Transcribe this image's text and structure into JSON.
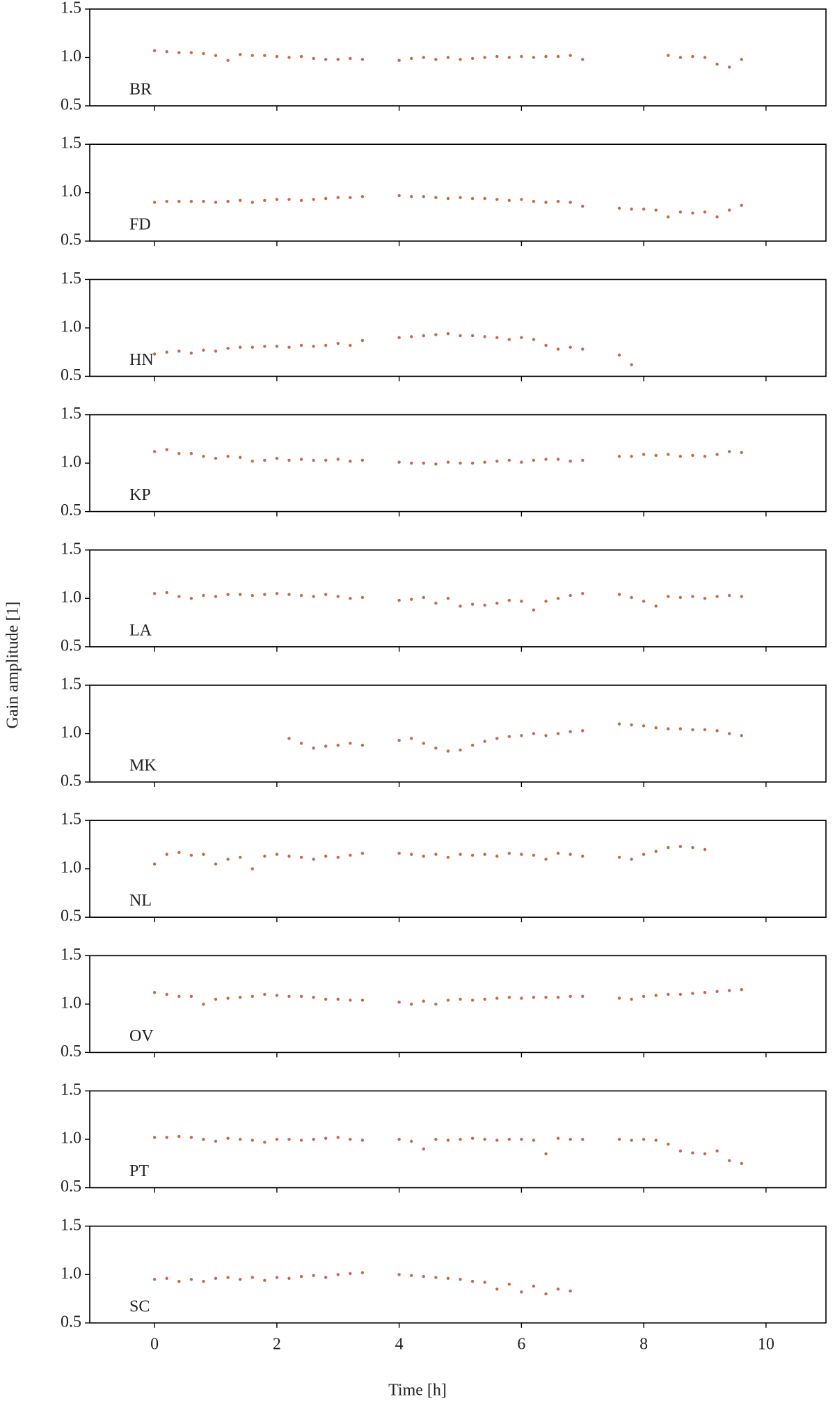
{
  "chart_data": {
    "type": "scatter",
    "xlabel": "Time [h]",
    "ylabel": "Gain amplitude [1]",
    "x": [
      0,
      0.2,
      0.4,
      0.6,
      0.8,
      1.0,
      1.2,
      1.4,
      1.6,
      1.8,
      2.0,
      2.2,
      2.4,
      2.6,
      2.8,
      3.0,
      3.2,
      3.4,
      3.6,
      3.8,
      4.0,
      4.2,
      4.4,
      4.6,
      4.8,
      5.0,
      5.2,
      5.4,
      5.6,
      5.8,
      6.0,
      6.2,
      6.4,
      6.6,
      6.8,
      7.0,
      7.2,
      7.4,
      7.6,
      7.8,
      8.0,
      8.2,
      8.4,
      8.6,
      8.8,
      9.0,
      9.2,
      9.4,
      9.6
    ],
    "xlim": [
      -1.06,
      10.98
    ],
    "xticks": [
      0,
      2,
      4,
      6,
      8,
      10
    ],
    "ylim": [
      0.5,
      1.5
    ],
    "yticks": [
      {
        "value": 0.5,
        "label": "0.5"
      },
      {
        "value": 1,
        "label": "1.0"
      },
      {
        "value": 1.5,
        "label": "1.5"
      }
    ],
    "color": "#c8693f",
    "series": [
      {
        "name": "BR",
        "values": [
          1.07,
          1.06,
          1.05,
          1.05,
          1.04,
          1.02,
          0.97,
          1.03,
          1.02,
          1.02,
          1.01,
          1.0,
          1.01,
          0.99,
          0.98,
          0.98,
          0.99,
          0.98,
          null,
          null,
          0.97,
          0.99,
          1.0,
          0.98,
          1.0,
          0.98,
          0.99,
          1.0,
          1.01,
          1.0,
          1.01,
          1.0,
          1.01,
          1.01,
          1.02,
          0.98,
          null,
          null,
          null,
          null,
          null,
          null,
          1.02,
          1.0,
          1.01,
          1.0,
          0.93,
          0.9,
          0.98
        ]
      },
      {
        "name": "FD",
        "values": [
          0.9,
          0.91,
          0.91,
          0.91,
          0.91,
          0.9,
          0.91,
          0.92,
          0.9,
          0.92,
          0.93,
          0.93,
          0.92,
          0.93,
          0.94,
          0.95,
          0.95,
          0.96,
          null,
          null,
          0.97,
          0.96,
          0.96,
          0.95,
          0.94,
          0.95,
          0.94,
          0.94,
          0.93,
          0.92,
          0.93,
          0.91,
          0.9,
          0.91,
          0.9,
          0.86,
          null,
          null,
          0.84,
          0.83,
          0.83,
          0.82,
          0.75,
          0.8,
          0.79,
          0.8,
          0.75,
          0.82,
          0.87
        ]
      },
      {
        "name": "HN",
        "values": [
          0.73,
          0.75,
          0.76,
          0.74,
          0.77,
          0.76,
          0.79,
          0.8,
          0.8,
          0.81,
          0.81,
          0.8,
          0.82,
          0.81,
          0.82,
          0.84,
          0.82,
          0.87,
          null,
          null,
          0.9,
          0.91,
          0.92,
          0.93,
          0.94,
          0.92,
          0.92,
          0.91,
          0.9,
          0.88,
          0.9,
          0.88,
          0.82,
          0.78,
          0.8,
          0.78,
          null,
          null,
          0.72,
          0.62,
          null,
          null,
          null,
          null,
          null,
          null,
          null,
          null,
          null
        ]
      },
      {
        "name": "KP",
        "values": [
          1.12,
          1.14,
          1.1,
          1.1,
          1.07,
          1.05,
          1.07,
          1.06,
          1.02,
          1.03,
          1.05,
          1.03,
          1.04,
          1.03,
          1.03,
          1.04,
          1.02,
          1.03,
          null,
          null,
          1.01,
          1.0,
          1.0,
          0.99,
          1.01,
          1.0,
          1.0,
          1.01,
          1.02,
          1.03,
          1.01,
          1.03,
          1.04,
          1.04,
          1.02,
          1.03,
          null,
          null,
          1.07,
          1.07,
          1.09,
          1.08,
          1.09,
          1.07,
          1.08,
          1.07,
          1.09,
          1.12,
          1.11
        ]
      },
      {
        "name": "LA",
        "values": [
          1.05,
          1.06,
          1.02,
          1.0,
          1.03,
          1.02,
          1.04,
          1.04,
          1.03,
          1.04,
          1.05,
          1.04,
          1.03,
          1.02,
          1.04,
          1.02,
          1.0,
          1.01,
          null,
          null,
          0.98,
          0.99,
          1.01,
          0.95,
          1.0,
          0.92,
          0.94,
          0.93,
          0.95,
          0.98,
          0.97,
          0.88,
          0.97,
          1.0,
          1.03,
          1.05,
          null,
          null,
          1.04,
          1.01,
          0.97,
          0.92,
          1.02,
          1.01,
          1.02,
          1.0,
          1.02,
          1.03,
          1.02
        ]
      },
      {
        "name": "MK",
        "values": [
          null,
          null,
          null,
          null,
          null,
          null,
          null,
          null,
          null,
          null,
          null,
          0.95,
          0.9,
          0.85,
          0.87,
          0.88,
          0.9,
          0.88,
          null,
          null,
          0.93,
          0.95,
          0.9,
          0.85,
          0.82,
          0.83,
          0.88,
          0.92,
          0.95,
          0.97,
          0.98,
          1.0,
          0.98,
          1.0,
          1.02,
          1.03,
          null,
          null,
          1.1,
          1.09,
          1.08,
          1.06,
          1.05,
          1.05,
          1.04,
          1.04,
          1.03,
          1.0,
          0.98
        ]
      },
      {
        "name": "NL",
        "values": [
          1.05,
          1.15,
          1.17,
          1.14,
          1.15,
          1.05,
          1.1,
          1.12,
          1.0,
          1.13,
          1.15,
          1.13,
          1.12,
          1.1,
          1.13,
          1.12,
          1.14,
          1.16,
          null,
          null,
          1.16,
          1.15,
          1.13,
          1.15,
          1.12,
          1.15,
          1.14,
          1.15,
          1.13,
          1.16,
          1.15,
          1.14,
          1.1,
          1.16,
          1.15,
          1.13,
          null,
          null,
          1.12,
          1.1,
          1.15,
          1.18,
          1.22,
          1.23,
          1.22,
          1.2,
          null,
          null,
          null
        ]
      },
      {
        "name": "OV",
        "values": [
          1.12,
          1.1,
          1.08,
          1.08,
          1.0,
          1.05,
          1.06,
          1.07,
          1.08,
          1.1,
          1.09,
          1.08,
          1.08,
          1.07,
          1.05,
          1.05,
          1.04,
          1.04,
          null,
          null,
          1.02,
          1.0,
          1.03,
          1.0,
          1.04,
          1.05,
          1.04,
          1.05,
          1.06,
          1.07,
          1.06,
          1.07,
          1.07,
          1.07,
          1.08,
          1.08,
          null,
          null,
          1.06,
          1.05,
          1.08,
          1.09,
          1.1,
          1.1,
          1.11,
          1.12,
          1.13,
          1.14,
          1.15
        ]
      },
      {
        "name": "PT",
        "values": [
          1.02,
          1.02,
          1.03,
          1.02,
          1.0,
          0.98,
          1.01,
          1.0,
          0.99,
          0.97,
          1.0,
          1.0,
          0.99,
          1.0,
          1.01,
          1.02,
          1.0,
          0.99,
          null,
          null,
          1.0,
          0.98,
          0.9,
          1.0,
          0.99,
          1.0,
          1.01,
          1.0,
          0.99,
          1.0,
          1.0,
          0.99,
          0.85,
          1.01,
          1.0,
          1.0,
          null,
          null,
          1.0,
          0.99,
          1.0,
          0.99,
          0.95,
          0.88,
          0.86,
          0.85,
          0.88,
          0.78,
          0.75
        ]
      },
      {
        "name": "SC",
        "values": [
          0.95,
          0.96,
          0.93,
          0.95,
          0.93,
          0.96,
          0.97,
          0.95,
          0.97,
          0.94,
          0.97,
          0.96,
          0.98,
          0.99,
          0.97,
          1.0,
          1.01,
          1.02,
          null,
          null,
          1.0,
          0.99,
          0.98,
          0.97,
          0.96,
          0.95,
          0.93,
          0.92,
          0.85,
          0.9,
          0.82,
          0.88,
          0.8,
          0.85,
          0.83,
          null,
          null,
          null,
          null,
          null,
          null,
          null,
          null,
          null,
          null,
          null,
          null,
          null,
          null
        ]
      }
    ]
  }
}
